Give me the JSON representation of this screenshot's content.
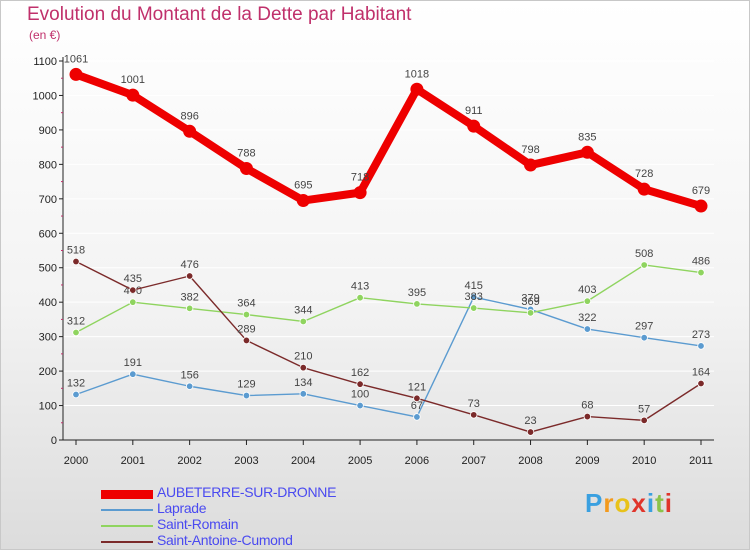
{
  "title": "Evolution du Montant de la Dette par Habitant",
  "subtitle": "(en €)",
  "logo": {
    "letters": [
      "P",
      "r",
      "o",
      "x",
      "i",
      "t",
      "i"
    ],
    "colors": [
      "#3aa0e0",
      "#f39a1d",
      "#e8c21a",
      "#e0352b",
      "#3aa0e0",
      "#8bc34a",
      "#e0352b"
    ]
  },
  "chart_data": {
    "type": "line",
    "title": "Evolution du Montant de la Dette par Habitant",
    "ylabel": "(en €)",
    "xlabel": "",
    "x": [
      "2000",
      "2001",
      "2002",
      "2003",
      "2004",
      "2005",
      "2006",
      "2007",
      "2008",
      "2009",
      "2010",
      "2011"
    ],
    "ylim": [
      0,
      1100
    ],
    "yticks": [
      "0",
      "100",
      "200",
      "300",
      "400",
      "500",
      "600",
      "700",
      "800",
      "900",
      "1000",
      "1100"
    ],
    "legend_position": "bottom-left",
    "series": [
      {
        "name": "AUBETERRE-SUR-DRONNE",
        "color": "#ee0000",
        "values": [
          1061,
          1001,
          896,
          788,
          695,
          718,
          1018,
          911,
          798,
          835,
          728,
          679
        ],
        "labels": [
          "1061",
          "1001",
          "896",
          "788",
          "695",
          "718",
          "1018",
          "911",
          "798",
          "835",
          "728",
          "679"
        ]
      },
      {
        "name": "Laprade",
        "color": "#5b9bd0",
        "values": [
          132,
          191,
          156,
          129,
          134,
          100,
          67,
          415,
          379,
          322,
          297,
          273
        ],
        "labels": [
          "132",
          "191",
          "156",
          "129",
          "134",
          "100",
          "67",
          "415",
          "379",
          "322",
          "297",
          "273"
        ]
      },
      {
        "name": "Saint-Romain",
        "color": "#8fd45f",
        "values": [
          312,
          400,
          382,
          364,
          344,
          413,
          395,
          383,
          369,
          403,
          508,
          486
        ],
        "labels": [
          "312",
          "400",
          "382",
          "364",
          "344",
          "413",
          "395",
          "383",
          "369",
          "403",
          "508",
          "486"
        ]
      },
      {
        "name": "Saint-Antoine-Cumond",
        "color": "#7b2a2a",
        "values": [
          518,
          435,
          476,
          289,
          210,
          162,
          121,
          73,
          23,
          68,
          57,
          164
        ],
        "labels": [
          "518",
          "435",
          "476",
          "289",
          "210",
          "162",
          "121",
          "73",
          "23",
          "68",
          "57",
          "164"
        ]
      }
    ]
  }
}
